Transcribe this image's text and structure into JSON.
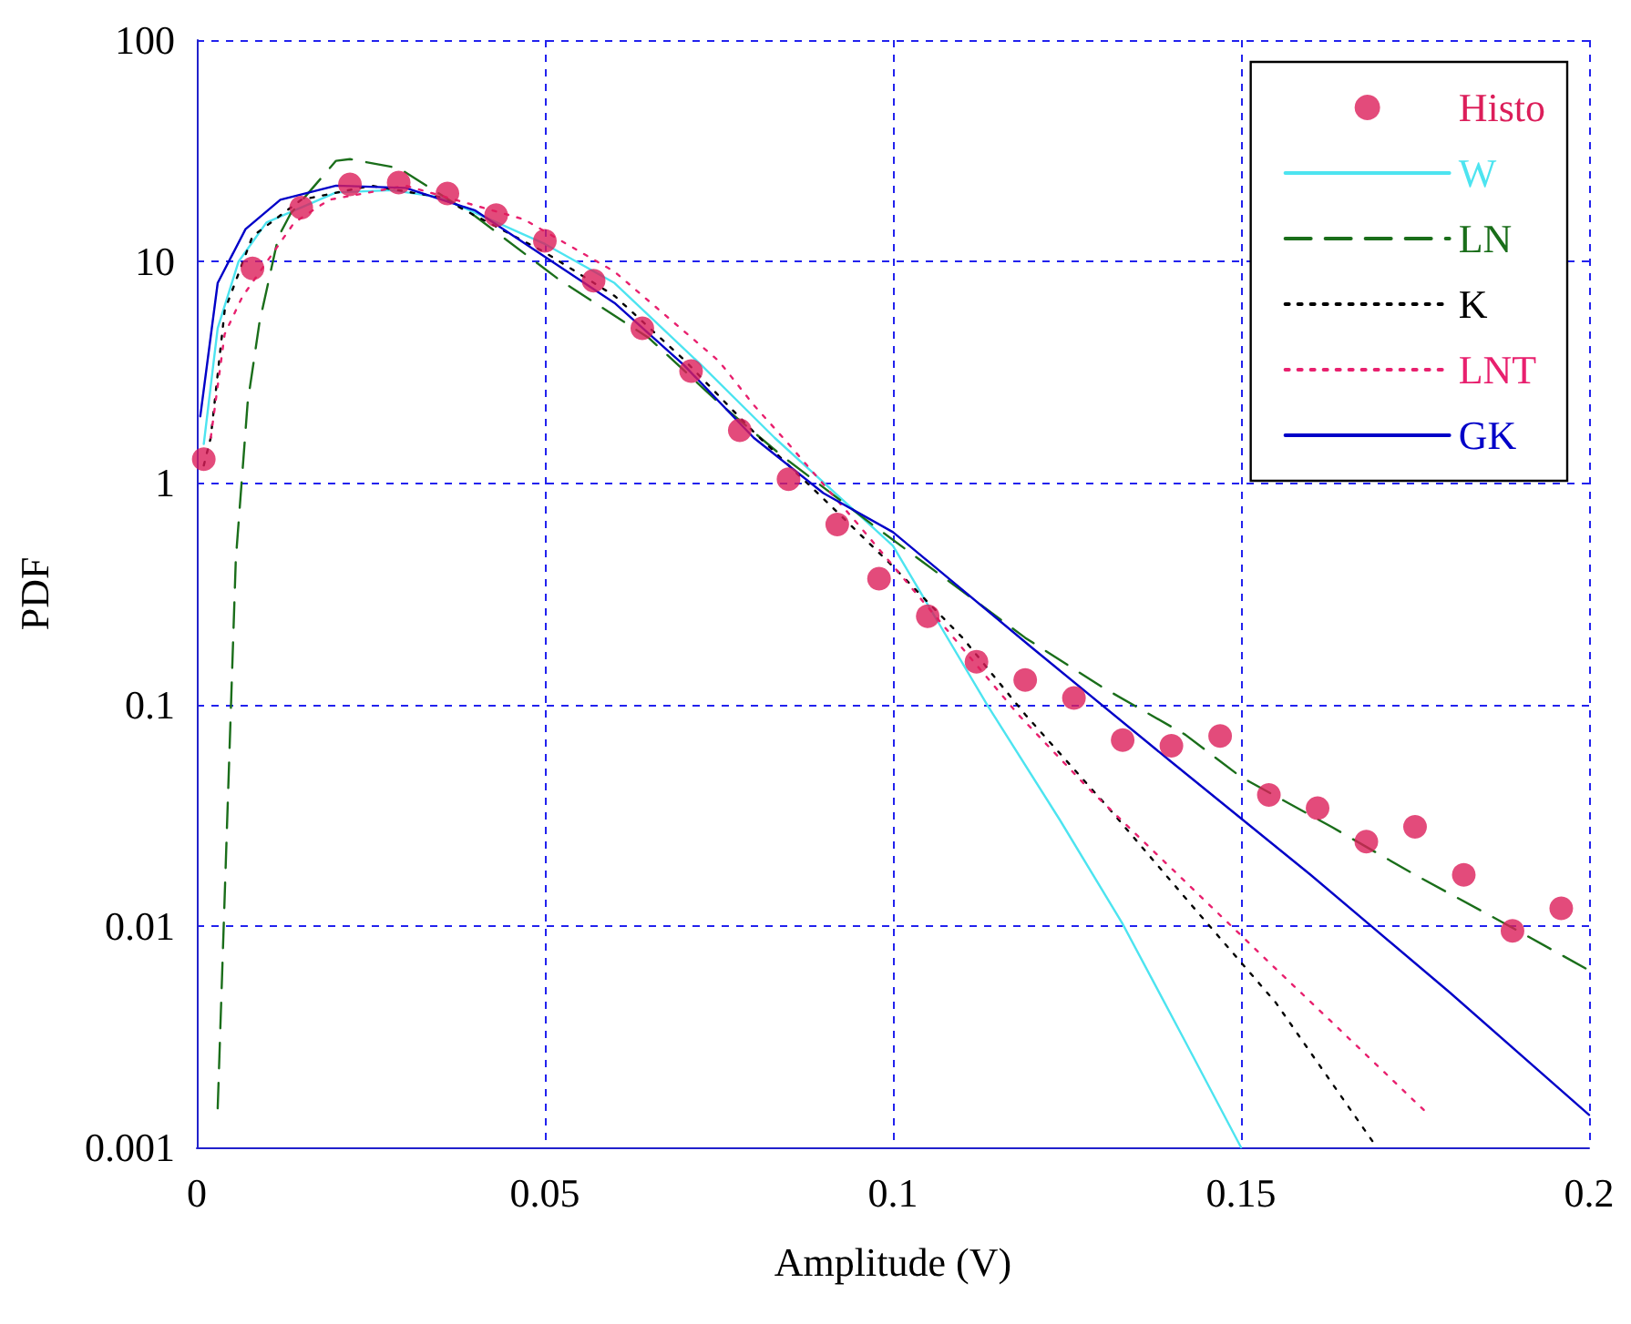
{
  "chart_data": {
    "type": "line",
    "xlabel": "Amplitude (V)",
    "ylabel": "PDF",
    "xlim": [
      0,
      0.2
    ],
    "xticks": [
      0,
      0.05,
      0.1,
      0.15,
      0.2
    ],
    "ylim": [
      0.001,
      100
    ],
    "yticks": [
      0.001,
      0.01,
      0.1,
      1,
      10,
      100
    ],
    "log": "y",
    "grid": true,
    "legend": "top right",
    "series": [
      {
        "name": "Histo",
        "type": "scatter",
        "marker": "circle",
        "color": "#dc1e5a",
        "x": [
          0.001,
          0.008,
          0.015,
          0.022,
          0.029,
          0.036,
          0.043,
          0.05,
          0.057,
          0.064,
          0.071,
          0.078,
          0.085,
          0.092,
          0.098,
          0.105,
          0.112,
          0.119,
          0.126,
          0.133,
          0.14,
          0.147,
          0.154,
          0.161,
          0.168,
          0.175,
          0.182,
          0.189,
          0.196
        ],
        "values": [
          1.28,
          9.3,
          17.5,
          22.3,
          22.7,
          20.3,
          16.2,
          12.4,
          8.2,
          5.0,
          3.2,
          1.73,
          1.04,
          0.65,
          0.37,
          0.25,
          0.156,
          0.129,
          0.107,
          0.069,
          0.065,
          0.072,
          0.039,
          0.034,
          0.024,
          0.028,
          0.017,
          0.0095,
          0.012
        ]
      },
      {
        "name": "W",
        "line_style": "solid",
        "color": "#4de4f0",
        "x": [
          0.001,
          0.003,
          0.006,
          0.01,
          0.02,
          0.028,
          0.035,
          0.05,
          0.06,
          0.0725,
          0.083,
          0.1,
          0.1135,
          0.124,
          0.133,
          0.142,
          0.15
        ],
        "values": [
          1.5,
          5,
          10,
          15,
          20.5,
          21,
          19.5,
          12,
          8,
          3.4,
          1.6,
          0.52,
          0.1,
          0.03,
          0.0102,
          0.003,
          0.001
        ]
      },
      {
        "name": "LN",
        "line_style": "dashed",
        "color": "#1a6e1a",
        "x": [
          0.003,
          0.0056,
          0.0073,
          0.009,
          0.0117,
          0.0135,
          0.02,
          0.022,
          0.029,
          0.04,
          0.052,
          0.065,
          0.075,
          0.084,
          0.097,
          0.119,
          0.13,
          0.142,
          0.15,
          0.163,
          0.175,
          0.188,
          0.2
        ],
        "values": [
          0.0015,
          0.45,
          2.3,
          5.3,
          12.9,
          16.5,
          28.5,
          29,
          26.4,
          16,
          8.3,
          4.5,
          2.3,
          1.33,
          0.65,
          0.2,
          0.12,
          0.073,
          0.047,
          0.028,
          0.017,
          0.0102,
          0.0063
        ]
      },
      {
        "name": "K",
        "line_style": "dotted",
        "color": "#000000",
        "x": [
          0.001,
          0.002,
          0.004,
          0.008,
          0.015,
          0.025,
          0.035,
          0.05,
          0.06,
          0.07,
          0.08,
          0.09,
          0.1,
          0.11,
          0.119,
          0.131,
          0.143,
          0.155,
          0.1695
        ],
        "values": [
          1.2,
          1.6,
          6,
          13,
          19,
          22,
          19.5,
          11,
          7,
          3.6,
          1.7,
          0.85,
          0.42,
          0.2,
          0.09,
          0.034,
          0.0123,
          0.0045,
          0.001
        ]
      },
      {
        "name": "LNT",
        "line_style": "dotted",
        "color": "#e8206e",
        "x": [
          0.002,
          0.004,
          0.0065,
          0.014,
          0.019,
          0.03,
          0.047,
          0.06,
          0.075,
          0.08,
          0.085,
          0.095,
          0.104,
          0.118,
          0.128,
          0.139,
          0.155,
          0.166,
          0.177
        ],
        "values": [
          1.6,
          4.7,
          6.9,
          15,
          19,
          22,
          15.5,
          9,
          3.55,
          2.25,
          1.5,
          0.65,
          0.3,
          0.09,
          0.042,
          0.0195,
          0.0064,
          0.003,
          0.0014
        ]
      },
      {
        "name": "GK",
        "line_style": "solid",
        "color": "#0000c8",
        "x": [
          0.0005,
          0.003,
          0.007,
          0.012,
          0.02,
          0.03,
          0.04,
          0.05,
          0.06,
          0.07,
          0.08,
          0.09,
          0.1,
          0.12,
          0.14,
          0.16,
          0.18,
          0.2
        ],
        "values": [
          2,
          8,
          14,
          19,
          22,
          21.5,
          17,
          10.5,
          6.5,
          3.4,
          1.6,
          0.9,
          0.6,
          0.18,
          0.055,
          0.017,
          0.005,
          0.0014
        ]
      }
    ]
  }
}
